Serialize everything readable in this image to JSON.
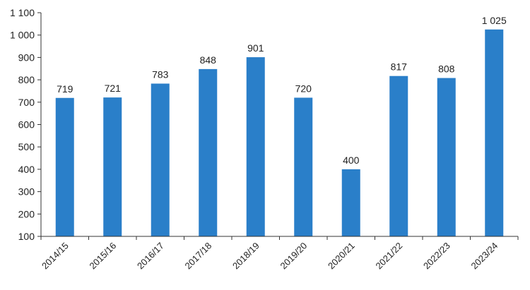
{
  "chart_data": {
    "type": "bar",
    "title": "",
    "xlabel": "",
    "ylabel": "",
    "categories": [
      "2014/15",
      "2015/16",
      "2016/17",
      "2017/18",
      "2018/19",
      "2019/20",
      "2020/21",
      "2021/22",
      "2022/23",
      "2023/24"
    ],
    "values": [
      719,
      721,
      783,
      848,
      901,
      720,
      400,
      817,
      808,
      1025
    ],
    "value_labels": [
      "719",
      "721",
      "783",
      "848",
      "901",
      "720",
      "400",
      "817",
      "808",
      "1 025"
    ],
    "ylim": [
      100,
      1100
    ],
    "yticks": [
      100,
      200,
      300,
      400,
      500,
      600,
      700,
      800,
      900,
      1000,
      1100
    ],
    "ytick_labels": [
      "100",
      "200",
      "300",
      "400",
      "500",
      "600",
      "700",
      "800",
      "900",
      "1 000",
      "1 100"
    ],
    "grid": false,
    "legend": "none",
    "bar_color": "#2a7fc9"
  }
}
